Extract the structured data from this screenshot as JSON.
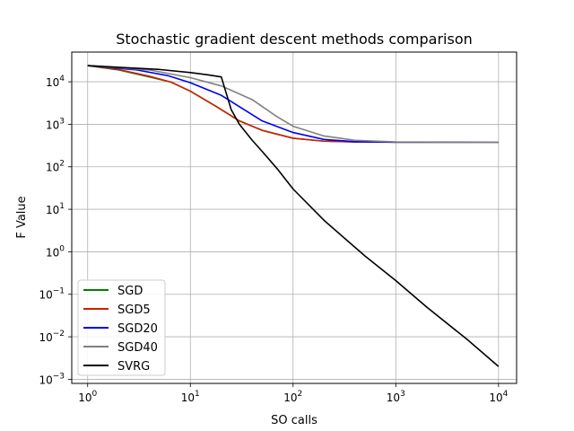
{
  "chart_data": {
    "type": "line",
    "title": "Stochastic gradient descent methods comparison",
    "xlabel": "SO calls",
    "ylabel": "F Value",
    "x_scale": "log",
    "y_scale": "log",
    "xlim": [
      0.7,
      15000
    ],
    "ylim": [
      0.0008,
      50000
    ],
    "x_ticks": [
      {
        "value": 1,
        "base": "10",
        "exp": "0"
      },
      {
        "value": 10,
        "base": "10",
        "exp": "1"
      },
      {
        "value": 100,
        "base": "10",
        "exp": "2"
      },
      {
        "value": 1000,
        "base": "10",
        "exp": "3"
      },
      {
        "value": 10000,
        "base": "10",
        "exp": "4"
      }
    ],
    "y_ticks": [
      {
        "value": 0.001,
        "base": "10",
        "exp": "−3"
      },
      {
        "value": 0.01,
        "base": "10",
        "exp": "−2"
      },
      {
        "value": 0.1,
        "base": "10",
        "exp": "−1"
      },
      {
        "value": 1,
        "base": "10",
        "exp": "0"
      },
      {
        "value": 10,
        "base": "10",
        "exp": "1"
      },
      {
        "value": 100,
        "base": "10",
        "exp": "2"
      },
      {
        "value": 1000,
        "base": "10",
        "exp": "3"
      },
      {
        "value": 10000,
        "base": "10",
        "exp": "4"
      }
    ],
    "grid": true,
    "legend_position": "lower-left",
    "series": [
      {
        "name": "SGD",
        "color": "#008000",
        "x": [
          1,
          2,
          4,
          6.5,
          10,
          18,
          30,
          50,
          100,
          200,
          400,
          1000,
          10000
        ],
        "y": [
          24000,
          19000,
          13000,
          9800,
          6000,
          2600,
          1200,
          720,
          470,
          400,
          385,
          380,
          380
        ]
      },
      {
        "name": "SGD5",
        "color": "#cc2200",
        "x": [
          1,
          2,
          4,
          6.5,
          10,
          18,
          30,
          50,
          100,
          200,
          400,
          1000,
          10000
        ],
        "y": [
          24000,
          19500,
          13500,
          9800,
          6000,
          2600,
          1200,
          720,
          470,
          400,
          385,
          380,
          380
        ]
      },
      {
        "name": "SGD20",
        "color": "#0000ee",
        "x": [
          1,
          3,
          6,
          10,
          20,
          30,
          50,
          100,
          200,
          400,
          1000,
          10000
        ],
        "y": [
          24000,
          19000,
          14000,
          9500,
          4800,
          2600,
          1200,
          640,
          440,
          390,
          380,
          380
        ]
      },
      {
        "name": "SGD40",
        "color": "#808080",
        "x": [
          1,
          4,
          10,
          20,
          40,
          70,
          100,
          200,
          400,
          1000,
          10000
        ],
        "y": [
          24000,
          19000,
          12500,
          8000,
          3800,
          1500,
          900,
          530,
          420,
          385,
          380
        ]
      },
      {
        "name": "SVRG",
        "color": "#000000",
        "x": [
          1,
          5,
          10,
          15,
          20,
          25,
          30,
          40,
          50,
          70,
          100,
          200,
          500,
          1000,
          2000,
          5000,
          10000
        ],
        "y": [
          24000,
          19500,
          16500,
          14500,
          13000,
          2200,
          1000,
          420,
          230,
          90,
          30,
          5.5,
          0.8,
          0.21,
          0.05,
          0.0085,
          0.002
        ]
      }
    ]
  }
}
